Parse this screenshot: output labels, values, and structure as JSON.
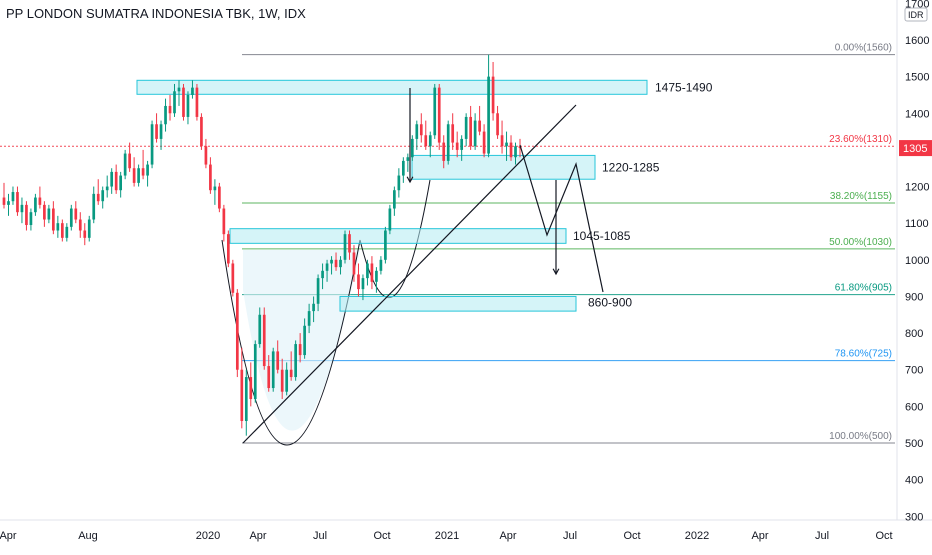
{
  "chart_data": {
    "type": "candlestick",
    "title": "PP LONDON SUMATRA INDONESIA TBK, 1W, IDX",
    "currency": "IDR",
    "last_price": 1305,
    "ylim": [
      280,
      1700
    ],
    "y_ticks": [
      1700,
      1600,
      1500,
      1400,
      1300,
      1200,
      1100,
      1000,
      900,
      800,
      700,
      600,
      500,
      400,
      300
    ],
    "y_tick_labels": [
      "1700",
      "1600",
      "1500",
      "1400",
      "1300",
      "1200",
      "1100",
      "1000",
      "900",
      "800",
      "700",
      "600",
      "500",
      "400",
      "300"
    ],
    "x_ticks": [
      "Apr",
      "Aug",
      "2020",
      "Apr",
      "Jul",
      "Oct",
      "2021",
      "Apr",
      "Jul",
      "Oct",
      "2022",
      "Apr",
      "Jul",
      "Oct"
    ],
    "fib_levels": [
      {
        "label": "0.00%(1560)",
        "value": 1560,
        "color": "#787b86"
      },
      {
        "label": "23.60%(1310)",
        "value": 1310,
        "color": "#f23645"
      },
      {
        "label": "38.20%(1155)",
        "value": 1155,
        "color": "#4caf50"
      },
      {
        "label": "50.00%(1030)",
        "value": 1030,
        "color": "#4caf50"
      },
      {
        "label": "61.80%(905)",
        "value": 905,
        "color": "#089981"
      },
      {
        "label": "78.60%(725)",
        "value": 725,
        "color": "#2196f3"
      },
      {
        "label": "100.00%(500)",
        "value": 500,
        "color": "#787b86"
      }
    ],
    "zones": [
      {
        "label": "1475-1490",
        "low": 1475,
        "high": 1490
      },
      {
        "label": "1220-1285",
        "low": 1220,
        "high": 1285
      },
      {
        "label": "1045-1085",
        "low": 1045,
        "high": 1085
      },
      {
        "label": "860-900",
        "low": 860,
        "high": 900
      }
    ],
    "candles": [
      [
        1170,
        1210,
        1140,
        1150
      ],
      [
        1150,
        1180,
        1120,
        1160
      ],
      [
        1160,
        1200,
        1150,
        1185
      ],
      [
        1185,
        1200,
        1120,
        1130
      ],
      [
        1130,
        1170,
        1100,
        1150
      ],
      [
        1150,
        1160,
        1080,
        1095
      ],
      [
        1095,
        1140,
        1080,
        1130
      ],
      [
        1130,
        1180,
        1120,
        1170
      ],
      [
        1170,
        1200,
        1140,
        1150
      ],
      [
        1150,
        1160,
        1090,
        1110
      ],
      [
        1110,
        1150,
        1100,
        1140
      ],
      [
        1140,
        1160,
        1070,
        1080
      ],
      [
        1080,
        1120,
        1060,
        1100
      ],
      [
        1100,
        1110,
        1050,
        1060
      ],
      [
        1060,
        1100,
        1050,
        1090
      ],
      [
        1090,
        1150,
        1080,
        1140
      ],
      [
        1140,
        1160,
        1100,
        1110
      ],
      [
        1110,
        1130,
        1060,
        1080
      ],
      [
        1080,
        1100,
        1040,
        1060
      ],
      [
        1060,
        1120,
        1050,
        1110
      ],
      [
        1110,
        1200,
        1100,
        1180
      ],
      [
        1180,
        1220,
        1150,
        1160
      ],
      [
        1160,
        1200,
        1140,
        1190
      ],
      [
        1190,
        1230,
        1170,
        1200
      ],
      [
        1200,
        1250,
        1180,
        1240
      ],
      [
        1240,
        1260,
        1180,
        1190
      ],
      [
        1190,
        1240,
        1170,
        1230
      ],
      [
        1230,
        1300,
        1220,
        1290
      ],
      [
        1290,
        1320,
        1240,
        1250
      ],
      [
        1250,
        1280,
        1200,
        1210
      ],
      [
        1210,
        1260,
        1200,
        1250
      ],
      [
        1250,
        1300,
        1220,
        1230
      ],
      [
        1230,
        1270,
        1200,
        1260
      ],
      [
        1260,
        1380,
        1250,
        1370
      ],
      [
        1370,
        1400,
        1320,
        1330
      ],
      [
        1330,
        1380,
        1300,
        1370
      ],
      [
        1370,
        1440,
        1350,
        1420
      ],
      [
        1420,
        1450,
        1380,
        1400
      ],
      [
        1400,
        1480,
        1390,
        1460
      ],
      [
        1460,
        1490,
        1420,
        1470
      ],
      [
        1470,
        1480,
        1380,
        1390
      ],
      [
        1390,
        1460,
        1370,
        1450
      ],
      [
        1450,
        1490,
        1440,
        1470
      ],
      [
        1470,
        1480,
        1380,
        1390
      ],
      [
        1390,
        1400,
        1300,
        1310
      ],
      [
        1310,
        1330,
        1250,
        1260
      ],
      [
        1260,
        1280,
        1180,
        1190
      ],
      [
        1190,
        1220,
        1150,
        1200
      ],
      [
        1200,
        1210,
        1130,
        1140
      ],
      [
        1140,
        1150,
        1050,
        1070
      ],
      [
        1070,
        1080,
        980,
        990
      ],
      [
        990,
        1000,
        900,
        910
      ],
      [
        910,
        920,
        680,
        700
      ],
      [
        700,
        760,
        540,
        560
      ],
      [
        560,
        700,
        520,
        680
      ],
      [
        680,
        720,
        600,
        620
      ],
      [
        620,
        780,
        610,
        770
      ],
      [
        770,
        870,
        760,
        850
      ],
      [
        850,
        870,
        700,
        710
      ],
      [
        710,
        740,
        640,
        650
      ],
      [
        650,
        760,
        640,
        750
      ],
      [
        750,
        780,
        690,
        700
      ],
      [
        700,
        730,
        620,
        640
      ],
      [
        640,
        720,
        630,
        700
      ],
      [
        700,
        750,
        670,
        680
      ],
      [
        680,
        780,
        670,
        770
      ],
      [
        770,
        800,
        720,
        740
      ],
      [
        740,
        840,
        730,
        820
      ],
      [
        820,
        880,
        800,
        860
      ],
      [
        860,
        900,
        830,
        880
      ],
      [
        880,
        960,
        860,
        950
      ],
      [
        950,
        990,
        920,
        970
      ],
      [
        970,
        1000,
        940,
        990
      ],
      [
        990,
        1010,
        960,
        1000
      ],
      [
        1000,
        1020,
        970,
        980
      ],
      [
        980,
        1010,
        960,
        1000
      ],
      [
        1000,
        1080,
        990,
        1070
      ],
      [
        1070,
        1080,
        1000,
        1020
      ],
      [
        1020,
        1040,
        940,
        960
      ],
      [
        960,
        990,
        900,
        920
      ],
      [
        920,
        960,
        890,
        950
      ],
      [
        950,
        1000,
        930,
        990
      ],
      [
        990,
        1010,
        920,
        940
      ],
      [
        940,
        980,
        910,
        970
      ],
      [
        970,
        1010,
        960,
        1000
      ],
      [
        1000,
        1090,
        990,
        1080
      ],
      [
        1080,
        1150,
        1070,
        1140
      ],
      [
        1140,
        1200,
        1120,
        1190
      ],
      [
        1190,
        1250,
        1170,
        1230
      ],
      [
        1230,
        1280,
        1210,
        1270
      ],
      [
        1270,
        1290,
        1240,
        1280
      ],
      [
        1280,
        1340,
        1270,
        1330
      ],
      [
        1330,
        1380,
        1300,
        1370
      ],
      [
        1370,
        1400,
        1320,
        1340
      ],
      [
        1340,
        1380,
        1300,
        1310
      ],
      [
        1310,
        1350,
        1280,
        1340
      ],
      [
        1340,
        1480,
        1330,
        1470
      ],
      [
        1470,
        1480,
        1300,
        1320
      ],
      [
        1320,
        1340,
        1250,
        1270
      ],
      [
        1270,
        1380,
        1260,
        1370
      ],
      [
        1370,
        1400,
        1300,
        1320
      ],
      [
        1320,
        1350,
        1280,
        1300
      ],
      [
        1300,
        1340,
        1270,
        1330
      ],
      [
        1330,
        1400,
        1310,
        1390
      ],
      [
        1390,
        1420,
        1300,
        1310
      ],
      [
        1310,
        1400,
        1300,
        1380
      ],
      [
        1380,
        1420,
        1340,
        1350
      ],
      [
        1350,
        1370,
        1280,
        1290
      ],
      [
        1290,
        1560,
        1280,
        1500
      ],
      [
        1500,
        1540,
        1380,
        1400
      ],
      [
        1400,
        1420,
        1330,
        1340
      ],
      [
        1340,
        1380,
        1290,
        1310
      ],
      [
        1310,
        1350,
        1270,
        1320
      ],
      [
        1320,
        1340,
        1270,
        1280
      ],
      [
        1280,
        1320,
        1260,
        1310
      ],
      [
        1310,
        1330,
        1280,
        1305
      ]
    ]
  }
}
